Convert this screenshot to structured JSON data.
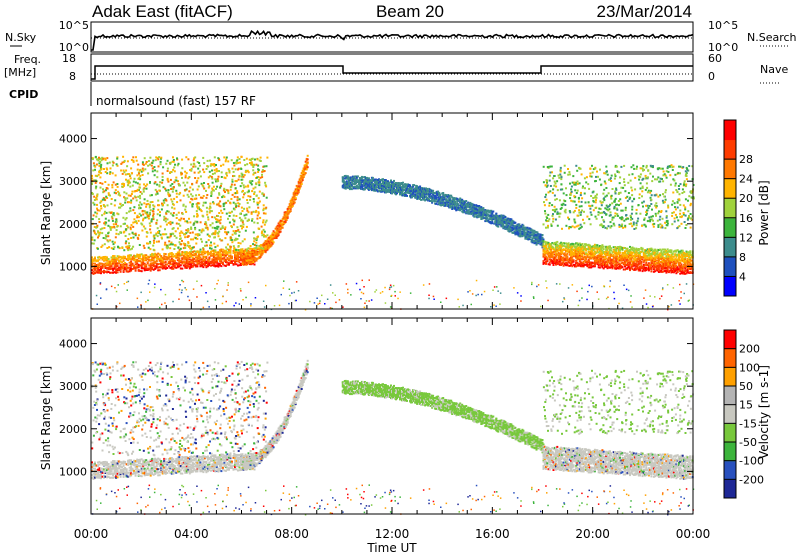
{
  "header": {
    "station": "Adak East (fitACF)",
    "beam": "Beam 20",
    "date": "23/Mar/2014"
  },
  "status_panels": {
    "nsky_label": "N.Sky",
    "nsearch_label": "N.Search",
    "noise_left_ticks": [
      "10^5",
      "10^0"
    ],
    "noise_right_ticks": [
      "10^5",
      "10^0"
    ],
    "freq_label_line1": "Freq.",
    "freq_label_line2": "[MHz]",
    "freq_ticks": [
      "18",
      "8"
    ],
    "nave_label": "Nave",
    "nave_ticks": [
      "60",
      "0"
    ],
    "cpid_label": "CPID",
    "cpid_text": "normalsound (fast) 157 RF"
  },
  "chart_data": [
    {
      "type": "heatmap",
      "title": "",
      "quantity": "Power",
      "xlabel": "Time UT",
      "ylabel": "Slant Range [km]",
      "x_ticks": [
        "00:00",
        "04:00",
        "08:00",
        "12:00",
        "16:00",
        "20:00",
        "00:00"
      ],
      "xlim_hours": [
        0,
        24
      ],
      "ylim_km": [
        0,
        4600
      ],
      "y_ticks": [
        "1000",
        "2000",
        "3000",
        "4000"
      ],
      "colorbar": {
        "label": "Power [dB]",
        "ticks": [
          "4",
          "8",
          "12",
          "16",
          "20",
          "24",
          "28"
        ],
        "colors": [
          "#0000ff",
          "#1e50be",
          "#3c8c8c",
          "#3cb43c",
          "#a0d23c",
          "#ffb400",
          "#ff7800",
          "#ff3c00",
          "#ff0000"
        ]
      }
    },
    {
      "type": "heatmap",
      "title": "",
      "quantity": "Velocity",
      "xlabel": "Time UT",
      "ylabel": "Slant Range [km]",
      "x_ticks": [
        "00:00",
        "04:00",
        "08:00",
        "12:00",
        "16:00",
        "20:00",
        "00:00"
      ],
      "xlim_hours": [
        0,
        24
      ],
      "ylim_km": [
        0,
        4600
      ],
      "y_ticks": [
        "1000",
        "2000",
        "3000",
        "4000"
      ],
      "colorbar": {
        "label": "Velocity [m s-1]",
        "ticks": [
          "200",
          "100",
          "50",
          "15",
          "-15",
          "-50",
          "-100",
          "-200"
        ],
        "colors": [
          "#1e2896",
          "#2850be",
          "#3cb43c",
          "#78c83c",
          "#c8c8c0",
          "#b4b4b4",
          "#ffa000",
          "#ff6400",
          "#ff0000"
        ]
      }
    }
  ]
}
